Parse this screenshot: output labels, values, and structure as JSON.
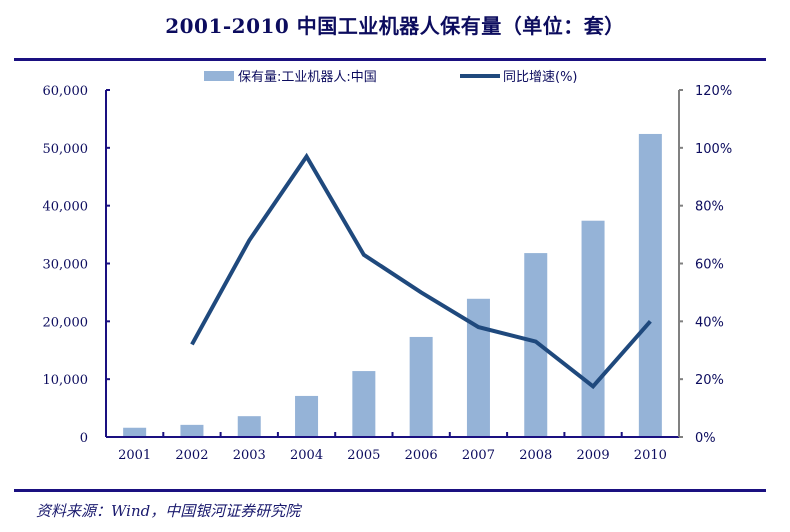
{
  "title": "2001-2010 中国工业机器人保有量（单位：套）",
  "source": "资料来源：Wind，中国银河证券研究院",
  "colors": {
    "bar": "#95b3d7",
    "line": "#1f497d",
    "axis": "#1a1080",
    "right_axis": "#808080"
  },
  "chart_data": {
    "type": "bar+line",
    "title": "2001-2010 中国工业机器人保有量（单位：套）",
    "categories": [
      "2001",
      "2002",
      "2003",
      "2004",
      "2005",
      "2006",
      "2007",
      "2008",
      "2009",
      "2010"
    ],
    "series": [
      {
        "name": "保有量:工业机器人:中国",
        "type": "bar",
        "axis": "left",
        "values": [
          1600,
          2100,
          3600,
          7100,
          11400,
          17300,
          23900,
          31800,
          37400,
          52400
        ]
      },
      {
        "name": "同比增速(%)",
        "type": "line",
        "axis": "right",
        "values": [
          null,
          32,
          68,
          97,
          63,
          50,
          38,
          33,
          17.5,
          40
        ]
      }
    ],
    "left_axis": {
      "range": [
        0,
        60000
      ],
      "ticks": [
        "0",
        "10,000",
        "20,000",
        "30,000",
        "40,000",
        "50,000",
        "60,000"
      ]
    },
    "right_axis": {
      "range": [
        0,
        120
      ],
      "ticks": [
        "0%",
        "20%",
        "40%",
        "60%",
        "80%",
        "100%",
        "120%"
      ]
    },
    "legend_position": "top",
    "grid": false
  }
}
